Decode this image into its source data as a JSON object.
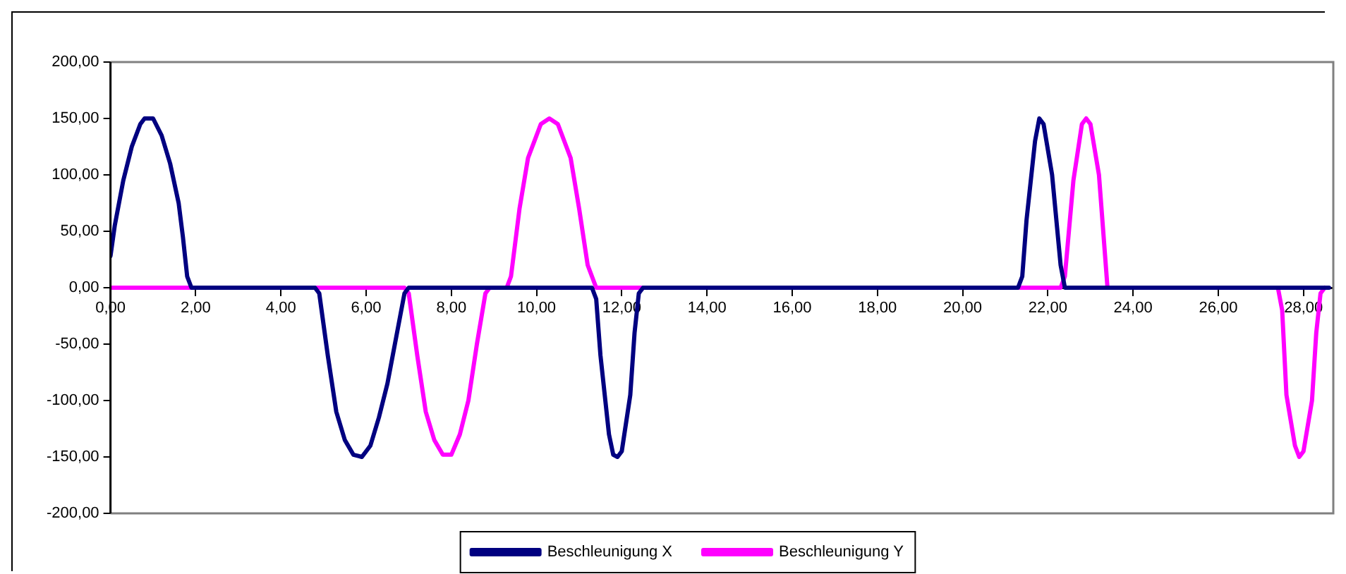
{
  "chart_data": {
    "type": "line",
    "xlim": [
      0,
      28.7
    ],
    "xticks": [
      {
        "value": 0,
        "label": "0,00"
      },
      {
        "value": 2,
        "label": "2,00"
      },
      {
        "value": 4,
        "label": "4,00"
      },
      {
        "value": 6,
        "label": "6,00"
      },
      {
        "value": 8,
        "label": "8,00"
      },
      {
        "value": 10,
        "label": "10,00"
      },
      {
        "value": 12,
        "label": "12,00"
      },
      {
        "value": 14,
        "label": "14,00"
      },
      {
        "value": 16,
        "label": "16,00"
      },
      {
        "value": 18,
        "label": "18,00"
      },
      {
        "value": 20,
        "label": "20,00"
      },
      {
        "value": 22,
        "label": "22,00"
      },
      {
        "value": 24,
        "label": "24,00"
      },
      {
        "value": 26,
        "label": "26,00"
      },
      {
        "value": 28,
        "label": "28,00"
      }
    ],
    "ylim": [
      -200,
      200
    ],
    "yticks": [
      {
        "value": -200,
        "label": "-200,00"
      },
      {
        "value": -150,
        "label": "-150,00"
      },
      {
        "value": -100,
        "label": "-100,00"
      },
      {
        "value": -50,
        "label": "-50,00"
      },
      {
        "value": 0,
        "label": "0,00"
      },
      {
        "value": 50,
        "label": "50,00"
      },
      {
        "value": 100,
        "label": "100,00"
      },
      {
        "value": 150,
        "label": "150,00"
      },
      {
        "value": 200,
        "label": "200,00"
      }
    ],
    "grid": false,
    "legend": "bottom",
    "marker": "none",
    "line_style": "solid",
    "series": [
      {
        "name": "Beschleunigung X",
        "color": "#000080",
        "x": [
          0,
          0.1,
          0.3,
          0.5,
          0.7,
          0.8,
          1.0,
          1.2,
          1.4,
          1.6,
          1.7,
          1.8,
          1.9,
          4.8,
          4.9,
          5.1,
          5.3,
          5.5,
          5.7,
          5.9,
          6.1,
          6.3,
          6.5,
          6.7,
          6.9,
          7.0,
          11.3,
          11.4,
          11.5,
          11.7,
          11.8,
          11.9,
          12.0,
          12.2,
          12.3,
          12.4,
          12.5,
          21.3,
          21.4,
          21.5,
          21.7,
          21.8,
          21.9,
          22.1,
          22.3,
          22.4,
          28.6
        ],
        "values": [
          28,
          55,
          95,
          125,
          145,
          150,
          150,
          135,
          110,
          75,
          45,
          10,
          0,
          0,
          -5,
          -60,
          -110,
          -135,
          -148,
          -150,
          -140,
          -115,
          -85,
          -45,
          -5,
          0,
          0,
          -10,
          -60,
          -130,
          -148,
          -150,
          -145,
          -95,
          -40,
          -5,
          0,
          0,
          10,
          60,
          130,
          150,
          145,
          100,
          20,
          0,
          0
        ]
      },
      {
        "name": "Beschleunigung Y",
        "color": "#ff00ff",
        "x": [
          0,
          6.9,
          7.0,
          7.2,
          7.4,
          7.6,
          7.8,
          8.0,
          8.2,
          8.4,
          8.6,
          8.8,
          8.9,
          9.3,
          9.4,
          9.6,
          9.8,
          10.1,
          10.3,
          10.5,
          10.8,
          11.0,
          11.2,
          11.4,
          22.3,
          22.4,
          22.6,
          22.8,
          22.9,
          23.0,
          23.2,
          23.4,
          27.4,
          27.5,
          27.6,
          27.8,
          27.9,
          28.0,
          28.2,
          28.3,
          28.4,
          28.5
        ],
        "values": [
          0,
          0,
          -5,
          -60,
          -110,
          -135,
          -148,
          -148,
          -130,
          -100,
          -50,
          -5,
          0,
          0,
          10,
          70,
          115,
          145,
          150,
          145,
          115,
          70,
          20,
          0,
          0,
          10,
          95,
          145,
          150,
          145,
          100,
          0,
          0,
          -20,
          -95,
          -140,
          -150,
          -145,
          -100,
          -40,
          -5,
          0
        ]
      }
    ]
  }
}
